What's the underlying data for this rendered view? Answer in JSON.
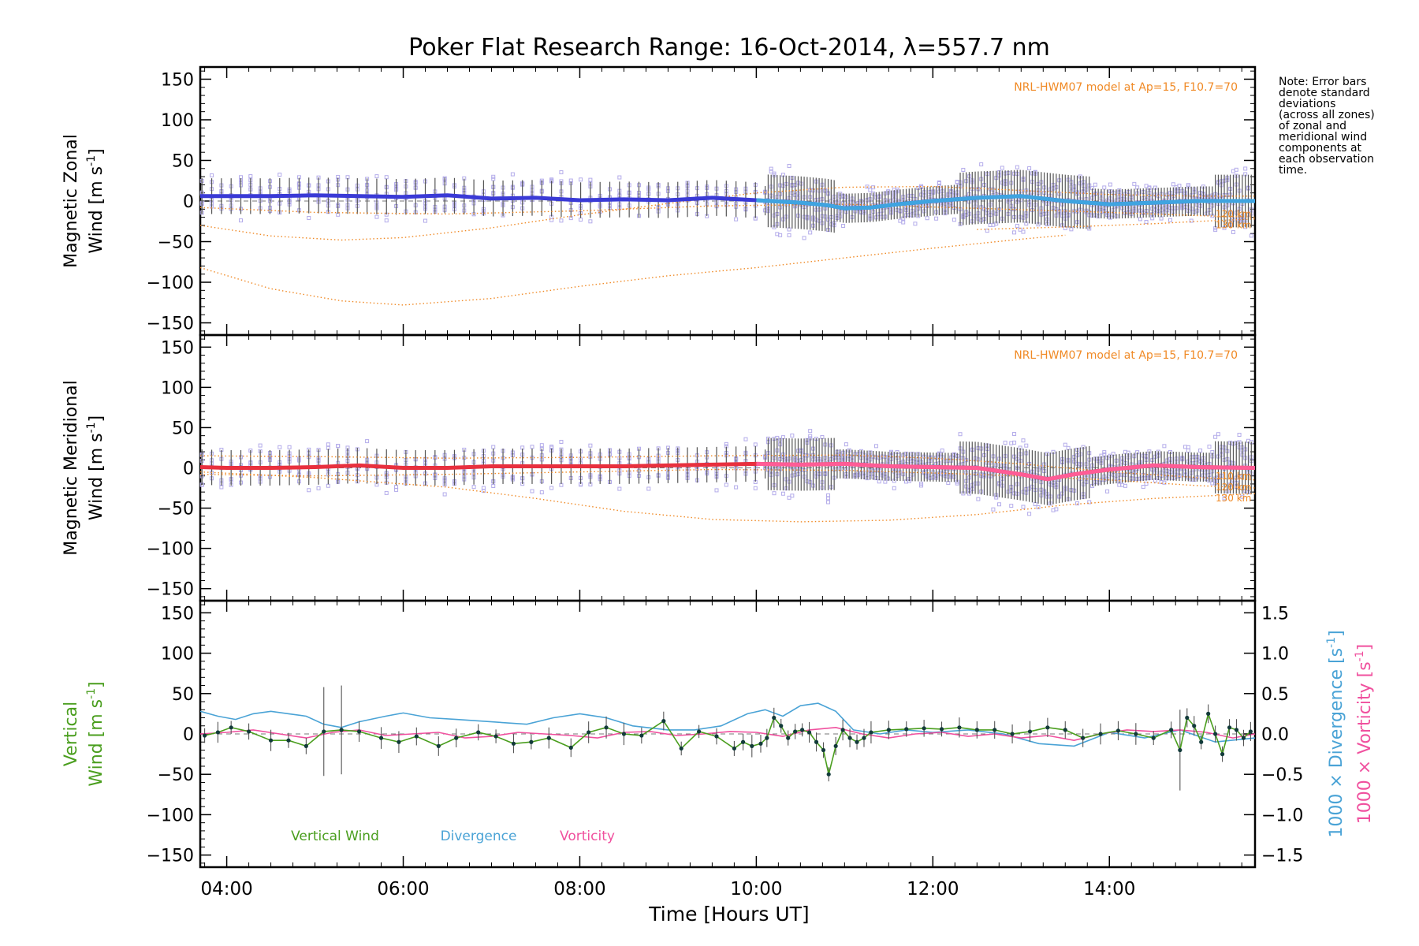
{
  "chart_data": {
    "type": "line",
    "title": "Poker Flat Research Range: 16-Oct-2014, λ=557.7 nm",
    "note": [
      "Note: Error bars",
      "denote standard",
      "deviations",
      "(across all zones)",
      "of zonal and",
      "meridional wind",
      "components at",
      "each observation",
      "time."
    ],
    "xlabel": "Time [Hours UT]",
    "xlim": [
      3.7,
      15.65
    ],
    "xticks": [
      4,
      6,
      8,
      10,
      12,
      14
    ],
    "xtick_labels": [
      "04:00",
      "06:00",
      "08:00",
      "10:00",
      "12:00",
      "14:00"
    ],
    "colors": {
      "zonal": "#3a3ad6",
      "zonal_late": "#3fa4e0",
      "meridional": "#e8303e",
      "meridional_late": "#ff5c96",
      "model": "#f08a26",
      "scatter": "#b4acea",
      "errorbar": "#555555",
      "vertical": "#4a9e1e",
      "divergence": "#4aa3d6",
      "vorticity": "#f0509e"
    },
    "panels": [
      {
        "id": "zonal",
        "ylabel_line1": "Magnetic Zonal",
        "ylabel_line2": "Wind [m s",
        "ylabel_sup": "-1",
        "ylabel_close": "]",
        "ylim": [
          -165,
          165
        ],
        "yticks": [
          -150,
          -100,
          -50,
          0,
          50,
          100,
          150
        ],
        "ytick_labels": [
          "−150",
          "−100",
          "−50",
          "0",
          "50",
          "100",
          "150"
        ],
        "model_label": "NRL-HWM07 model at Ap=15, F10.7=70",
        "model_alt_labels": [
          "120 km",
          "130 km"
        ],
        "series": [
          {
            "x": [
              3.7,
              4.0,
              4.5,
              5.0,
              5.5,
              6.0,
              6.5,
              7.0,
              7.5,
              8.0,
              8.5,
              9.0,
              9.5,
              10.0,
              10.5,
              10.8,
              11.0,
              11.3,
              11.6,
              12.0,
              12.5,
              13.0,
              13.5,
              14.0,
              14.5,
              15.0,
              15.65
            ],
            "y": [
              6,
              6,
              6,
              7,
              6,
              5,
              7,
              3,
              4,
              1,
              2,
              1,
              4,
              1,
              -2,
              -5,
              -9,
              -8,
              -4,
              0,
              4,
              6,
              0,
              -4,
              -2,
              0,
              0
            ]
          }
        ],
        "models": [
          {
            "x": [
              3.7,
              4.5,
              5.3,
              6.0,
              7.0,
              8.0,
              9.0,
              10.0,
              11.0,
              12.0,
              13.0,
              14.0,
              15.0,
              15.65
            ],
            "y": [
              -30,
              -43,
              -48,
              -45,
              -33,
              -17,
              -3,
              10,
              17,
              18,
              13,
              8,
              6,
              6
            ]
          },
          {
            "x": [
              3.7,
              4.5,
              5.3,
              6.0,
              7.0,
              8.0,
              9.0,
              10.0,
              11.0,
              12.0,
              13.0,
              13.5
            ],
            "y": [
              -82,
              -108,
              -123,
              -128,
              -120,
              -105,
              -92,
              -82,
              -70,
              -58,
              -47,
              -42
            ]
          },
          {
            "x": [
              3.7,
              5.0,
              6.5,
              8.0,
              9.5,
              11.0,
              12.5,
              14.0,
              15.0,
              15.65
            ],
            "y": [
              -8,
              -14,
              -16,
              -12,
              -6,
              -4,
              -9,
              -14,
              -18,
              -20
            ]
          },
          {
            "x": [
              12.5,
              13.5,
              14.5,
              15.0,
              15.65
            ],
            "y": [
              -35,
              -32,
              -28,
              -25,
              -22
            ]
          }
        ]
      },
      {
        "id": "meridional",
        "ylabel_line1": "Magnetic Meridional",
        "ylabel_line2": "Wind [m s",
        "ylabel_sup": "-1",
        "ylabel_close": "]",
        "ylim": [
          -165,
          165
        ],
        "yticks": [
          -150,
          -100,
          -50,
          0,
          50,
          100,
          150
        ],
        "ytick_labels": [
          "−150",
          "−100",
          "−50",
          "0",
          "50",
          "100",
          "150"
        ],
        "model_label": "NRL-HWM07 model at Ap=15, F10.7=70",
        "model_alt_labels": [
          "110 km",
          "120 km",
          "130 km"
        ],
        "series": [
          {
            "x": [
              3.7,
              4.0,
              4.5,
              5.0,
              5.5,
              6.0,
              6.5,
              7.0,
              7.5,
              8.0,
              8.5,
              9.0,
              9.5,
              10.0,
              10.5,
              11.0,
              11.5,
              12.0,
              12.5,
              13.0,
              13.3,
              13.6,
              14.0,
              14.5,
              15.0,
              15.65
            ],
            "y": [
              1,
              0,
              0,
              1,
              3,
              0,
              0,
              2,
              2,
              2,
              2,
              3,
              4,
              5,
              4,
              5,
              2,
              1,
              0,
              -8,
              -14,
              -8,
              -2,
              3,
              1,
              0
            ]
          }
        ],
        "models": [
          {
            "x": [
              3.7,
              5.0,
              6.5,
              8.0,
              9.5,
              11.0,
              12.0,
              13.0,
              14.0,
              15.0,
              15.65
            ],
            "y": [
              15,
              14,
              12,
              13,
              15,
              16,
              12,
              5,
              -5,
              -12,
              -15
            ]
          },
          {
            "x": [
              3.7,
              5.0,
              6.5,
              8.0,
              9.5,
              11.0,
              12.5,
              14.0,
              15.0,
              15.65
            ],
            "y": [
              -8,
              -10,
              -8,
              -5,
              -2,
              -3,
              -8,
              -15,
              -22,
              -25
            ]
          },
          {
            "x": [
              3.7,
              5.0,
              6.5,
              7.5,
              8.5,
              9.5,
              10.5,
              11.5,
              12.5,
              13.5,
              14.5,
              15.65
            ],
            "y": [
              -5,
              -12,
              -24,
              -38,
              -54,
              -64,
              -67,
              -65,
              -58,
              -46,
              -38,
              -32
            ]
          }
        ]
      },
      {
        "id": "vertical",
        "ylabel_line1": "Vertical",
        "ylabel_line2": "Wind [m s",
        "ylabel_sup": "-1",
        "ylabel_close": "]",
        "ylim": [
          -165,
          165
        ],
        "yticks": [
          -150,
          -100,
          -50,
          0,
          50,
          100,
          150
        ],
        "ytick_labels": [
          "−150",
          "−100",
          "−50",
          "0",
          "50",
          "100",
          "150"
        ],
        "right_axis": {
          "ylim": [
            -1.65,
            1.65
          ],
          "yticks": [
            -1.5,
            -1.0,
            -0.5,
            0.0,
            0.5,
            1.0,
            1.5
          ],
          "ytick_labels": [
            "−1.5",
            "−1.0",
            "−0.5",
            "0.0",
            "0.5",
            "1.0",
            "1.5"
          ],
          "label_div": "1000 × Divergence [s",
          "label_vor": "1000 × Vorticity [s",
          "label_sup": "-1",
          "label_close": "]"
        },
        "legend": [
          "Vertical Wind",
          "Divergence",
          "Vorticity"
        ],
        "vertical_wind": {
          "x": [
            3.75,
            3.9,
            4.05,
            4.25,
            4.5,
            4.7,
            4.9,
            5.1,
            5.3,
            5.5,
            5.75,
            5.95,
            6.15,
            6.4,
            6.6,
            6.85,
            7.05,
            7.25,
            7.45,
            7.65,
            7.9,
            8.1,
            8.3,
            8.5,
            8.7,
            8.95,
            9.15,
            9.35,
            9.55,
            9.75,
            9.85,
            9.95,
            10.05,
            10.12,
            10.2,
            10.28,
            10.36,
            10.44,
            10.52,
            10.6,
            10.68,
            10.76,
            10.82,
            10.9,
            10.98,
            11.06,
            11.14,
            11.22,
            11.3,
            11.5,
            11.7,
            11.9,
            12.1,
            12.3,
            12.5,
            12.7,
            12.9,
            13.1,
            13.3,
            13.5,
            13.7,
            13.9,
            14.1,
            14.3,
            14.5,
            14.7,
            14.8,
            14.88,
            14.96,
            15.04,
            15.12,
            15.2,
            15.28,
            15.36,
            15.44,
            15.52,
            15.6
          ],
          "y": [
            -2,
            2,
            8,
            3,
            -8,
            -8,
            -15,
            3,
            5,
            3,
            -5,
            -10,
            -3,
            -15,
            -5,
            2,
            -3,
            -12,
            -10,
            -5,
            -17,
            2,
            8,
            0,
            -2,
            16,
            -18,
            3,
            -3,
            -18,
            -10,
            -15,
            -12,
            -5,
            20,
            10,
            -5,
            3,
            5,
            2,
            -10,
            -20,
            -50,
            -15,
            5,
            -5,
            -10,
            -5,
            2,
            5,
            6,
            7,
            6,
            8,
            5,
            5,
            0,
            3,
            8,
            5,
            -5,
            0,
            4,
            0,
            -5,
            5,
            -20,
            20,
            10,
            -10,
            25,
            0,
            -25,
            8,
            5,
            -5,
            3
          ]
        },
        "divergence": {
          "x": [
            3.7,
            3.9,
            4.1,
            4.3,
            4.5,
            4.7,
            4.9,
            5.1,
            5.3,
            5.5,
            5.8,
            6.0,
            6.3,
            6.6,
            7.0,
            7.4,
            7.7,
            8.0,
            8.3,
            8.6,
            9.0,
            9.3,
            9.6,
            9.9,
            10.1,
            10.3,
            10.5,
            10.7,
            10.9,
            11.1,
            11.4,
            11.7,
            12.0,
            12.4,
            12.8,
            13.2,
            13.6,
            14.0,
            14.4,
            14.8,
            15.2,
            15.65
          ],
          "y": [
            0.28,
            0.22,
            0.18,
            0.25,
            0.28,
            0.25,
            0.22,
            0.12,
            0.08,
            0.15,
            0.22,
            0.26,
            0.2,
            0.18,
            0.15,
            0.12,
            0.2,
            0.25,
            0.2,
            0.1,
            0.05,
            0.05,
            0.1,
            0.25,
            0.3,
            0.22,
            0.35,
            0.38,
            0.28,
            0.05,
            0.0,
            0.05,
            0.02,
            0.05,
            0.0,
            -0.12,
            -0.15,
            0.02,
            -0.05,
            0.05,
            -0.1,
            -0.05
          ]
        },
        "vorticity": {
          "x": [
            3.7,
            4.0,
            4.3,
            4.6,
            4.9,
            5.2,
            5.5,
            5.8,
            6.1,
            6.4,
            6.7,
            7.0,
            7.3,
            7.6,
            7.9,
            8.2,
            8.5,
            8.8,
            9.1,
            9.4,
            9.7,
            10.0,
            10.3,
            10.6,
            10.9,
            11.2,
            11.5,
            11.8,
            12.1,
            12.4,
            12.7,
            13.0,
            13.3,
            13.6,
            13.9,
            14.2,
            14.5,
            14.8,
            15.1,
            15.4,
            15.65
          ],
          "y": [
            0.0,
            0.02,
            0.05,
            0.0,
            -0.05,
            0.02,
            0.05,
            -0.02,
            0.0,
            0.02,
            -0.05,
            -0.03,
            0.02,
            0.0,
            -0.02,
            -0.05,
            0.02,
            0.03,
            -0.02,
            0.0,
            0.03,
            0.02,
            -0.03,
            0.05,
            0.08,
            0.0,
            -0.05,
            0.0,
            0.02,
            -0.03,
            0.0,
            -0.05,
            -0.02,
            -0.08,
            0.0,
            0.05,
            0.03,
            0.05,
            0.02,
            -0.05,
            0.0
          ]
        }
      }
    ]
  }
}
